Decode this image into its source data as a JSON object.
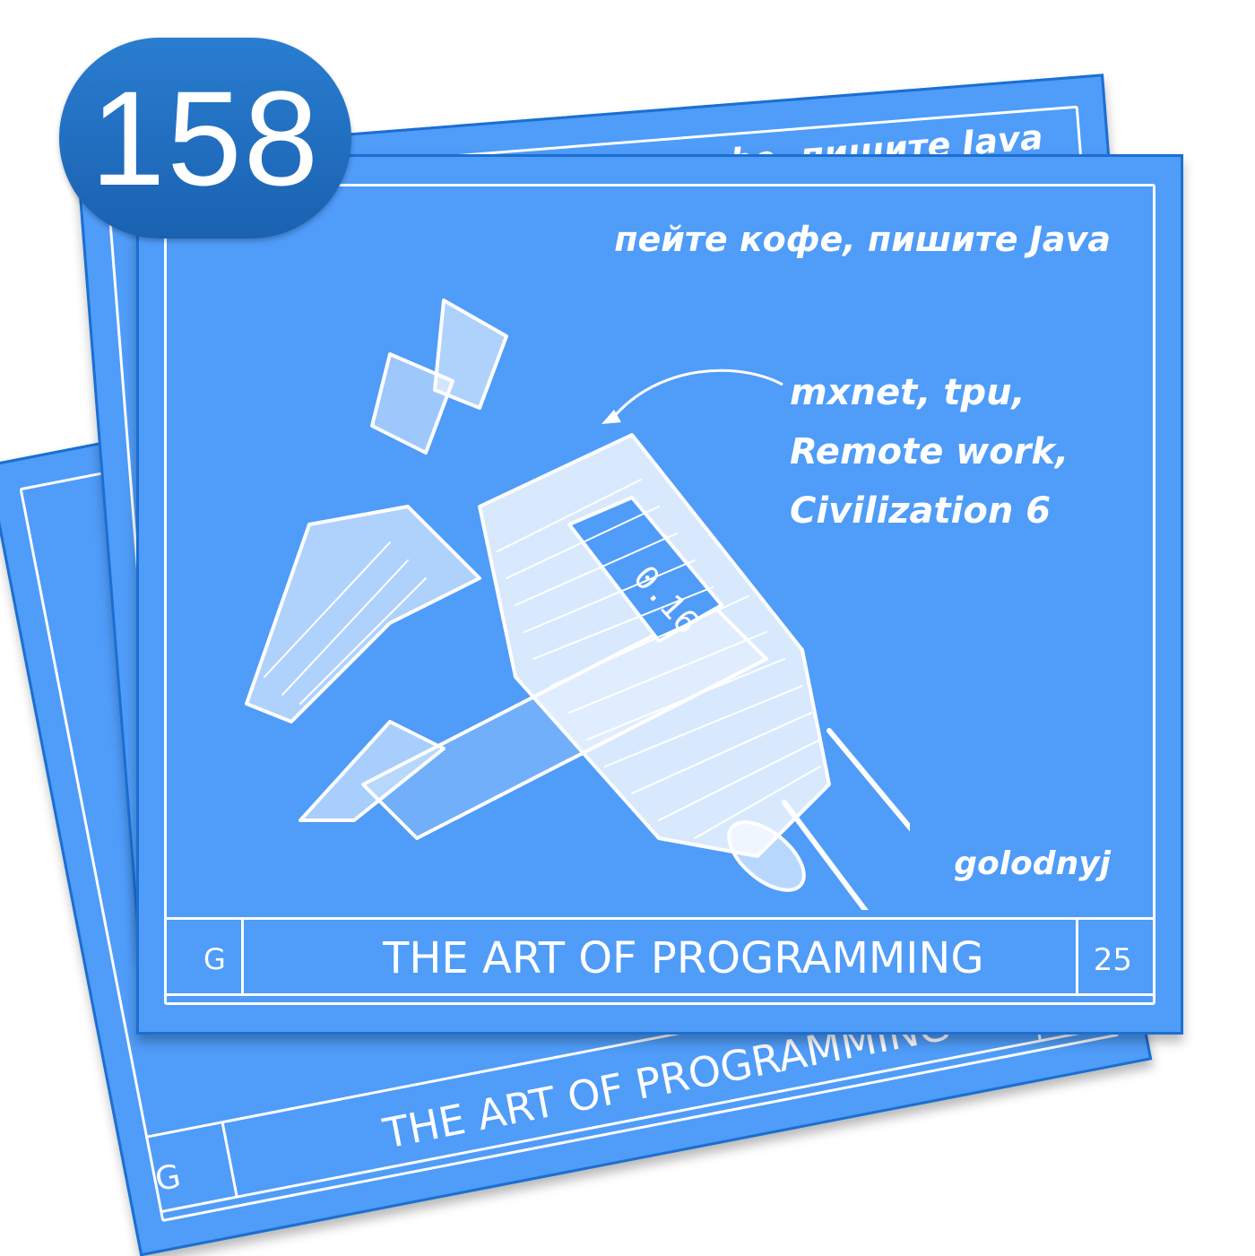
{
  "episode_badge": {
    "number": "158"
  },
  "card": {
    "tagline": "пейте кофе, пишите Java",
    "topics_line1": "mxnet, tpu,",
    "topics_line2": "Remote work,",
    "topics_line3": "Civilization 6",
    "author": "golodnyj",
    "title": "THE ART OF PROGRAMMING",
    "corner_left": "G",
    "corner_right": "25"
  },
  "back_cards": {
    "top_tagline": "пейте кофе, пишите Java",
    "bottom_title": "THE ART OF PROGRAMMING",
    "bottom_corner_left": "G"
  },
  "colors": {
    "card_blue": "#4f9cf9",
    "card_border": "#1b6fd1",
    "badge_blue": "#1f6cc0",
    "chalk": "#ffffff"
  },
  "illustration": {
    "subject": "caliper-sketch"
  }
}
